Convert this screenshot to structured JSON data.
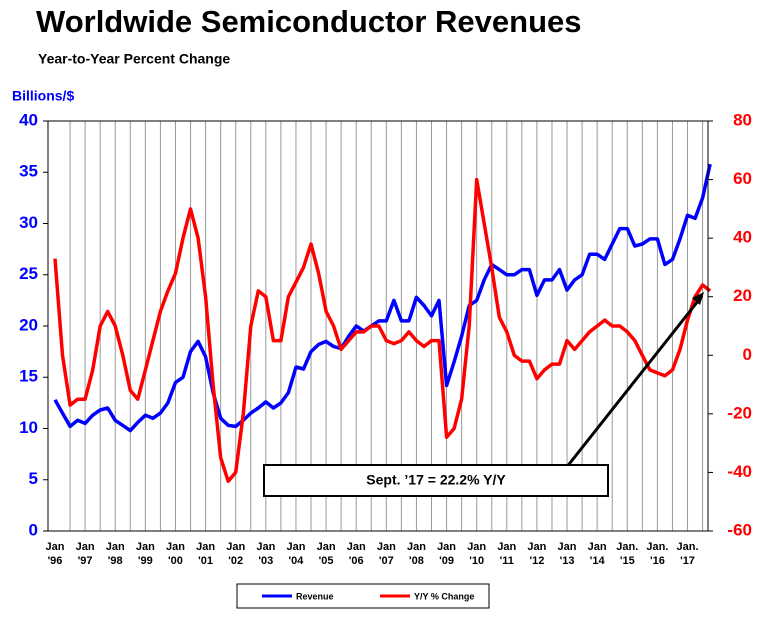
{
  "chart_data": {
    "type": "line",
    "title": "Worldwide Semiconductor Revenues",
    "subtitle": "Year-to-Year Percent Change",
    "y_label": "Billions/$",
    "annotation": "Sept. ’17 = 22.2% Y/Y",
    "categories": [
      "Jan '96",
      null,
      null,
      null,
      "Jan '97",
      null,
      null,
      null,
      "Jan '98",
      null,
      null,
      null,
      "Jan '99",
      null,
      null,
      null,
      "Jan '00",
      null,
      null,
      null,
      "Jan '01",
      null,
      null,
      null,
      "Jan '02",
      null,
      null,
      null,
      "Jan '03",
      null,
      null,
      null,
      "Jan '04",
      null,
      null,
      null,
      "Jan '05",
      null,
      null,
      null,
      "Jan '06",
      null,
      null,
      null,
      "Jan '07",
      null,
      null,
      null,
      "Jan '08",
      null,
      null,
      null,
      "Jan '09",
      null,
      null,
      null,
      "Jan '10",
      null,
      null,
      null,
      "Jan '11",
      null,
      null,
      null,
      "Jan '12",
      null,
      null,
      null,
      "Jan '13",
      null,
      null,
      null,
      "Jan '14",
      null,
      null,
      null,
      "Jan. '15",
      null,
      null,
      null,
      "Jan. '16",
      null,
      null,
      null,
      "Jan. '17",
      null,
      null,
      null
    ],
    "series": [
      {
        "name": "Revenue",
        "color": "#0000ff",
        "values": [
          12.8,
          11.5,
          10.2,
          10.8,
          10.5,
          11.3,
          11.8,
          12.0,
          10.8,
          10.3,
          9.8,
          10.6,
          11.3,
          11.0,
          11.5,
          12.5,
          14.5,
          15.0,
          17.5,
          18.5,
          17.0,
          13.5,
          11.0,
          10.3,
          10.2,
          10.8,
          11.5,
          12.0,
          12.6,
          12.0,
          12.5,
          13.5,
          16.0,
          15.8,
          17.5,
          18.2,
          18.5,
          18.0,
          17.8,
          19.0,
          20.0,
          19.5,
          20.0,
          20.5,
          20.5,
          22.5,
          20.5,
          20.5,
          22.8,
          22.0,
          21.0,
          22.5,
          14.2,
          16.5,
          19.0,
          22.0,
          22.5,
          24.5,
          26.0,
          25.5,
          25.0,
          25.0,
          25.5,
          25.5,
          23.0,
          24.5,
          24.5,
          25.5,
          23.5,
          24.5,
          25.0,
          27.0,
          27.0,
          26.5,
          28.0,
          29.5,
          29.5,
          27.8,
          28.0,
          28.5,
          28.5,
          26.0,
          26.5,
          28.5,
          30.8,
          30.5,
          32.5,
          35.8
        ]
      },
      {
        "name": "Y/Y % Change",
        "color": "#ff0000",
        "axis": "y2",
        "values": [
          33,
          0,
          -17,
          -15,
          -15,
          -5,
          10,
          15,
          10,
          0,
          -12,
          -15,
          -5,
          5,
          15,
          22,
          28,
          40,
          50,
          40,
          20,
          -10,
          -35,
          -43,
          -40,
          -20,
          10,
          22,
          20,
          5,
          5,
          20,
          25,
          30,
          38,
          28,
          15,
          10,
          2,
          5,
          8,
          8,
          10,
          10,
          5,
          4,
          5,
          8,
          5,
          3,
          5,
          5,
          -28,
          -25,
          -15,
          10,
          60,
          45,
          30,
          13,
          8,
          0,
          -2,
          -2,
          -8,
          -5,
          -3,
          -3,
          5,
          2,
          5,
          8,
          10,
          12,
          10,
          10,
          8,
          5,
          0,
          -5,
          -6,
          -7,
          -5,
          2,
          12,
          20,
          24,
          22
        ]
      }
    ],
    "ylim": [
      0,
      40
    ],
    "yticks": [
      0,
      5,
      10,
      15,
      20,
      25,
      30,
      35,
      40
    ],
    "y2lim": [
      -60,
      80
    ],
    "y2ticks": [
      -60,
      -40,
      -20,
      0,
      20,
      40,
      60,
      80
    ],
    "grid": true
  }
}
